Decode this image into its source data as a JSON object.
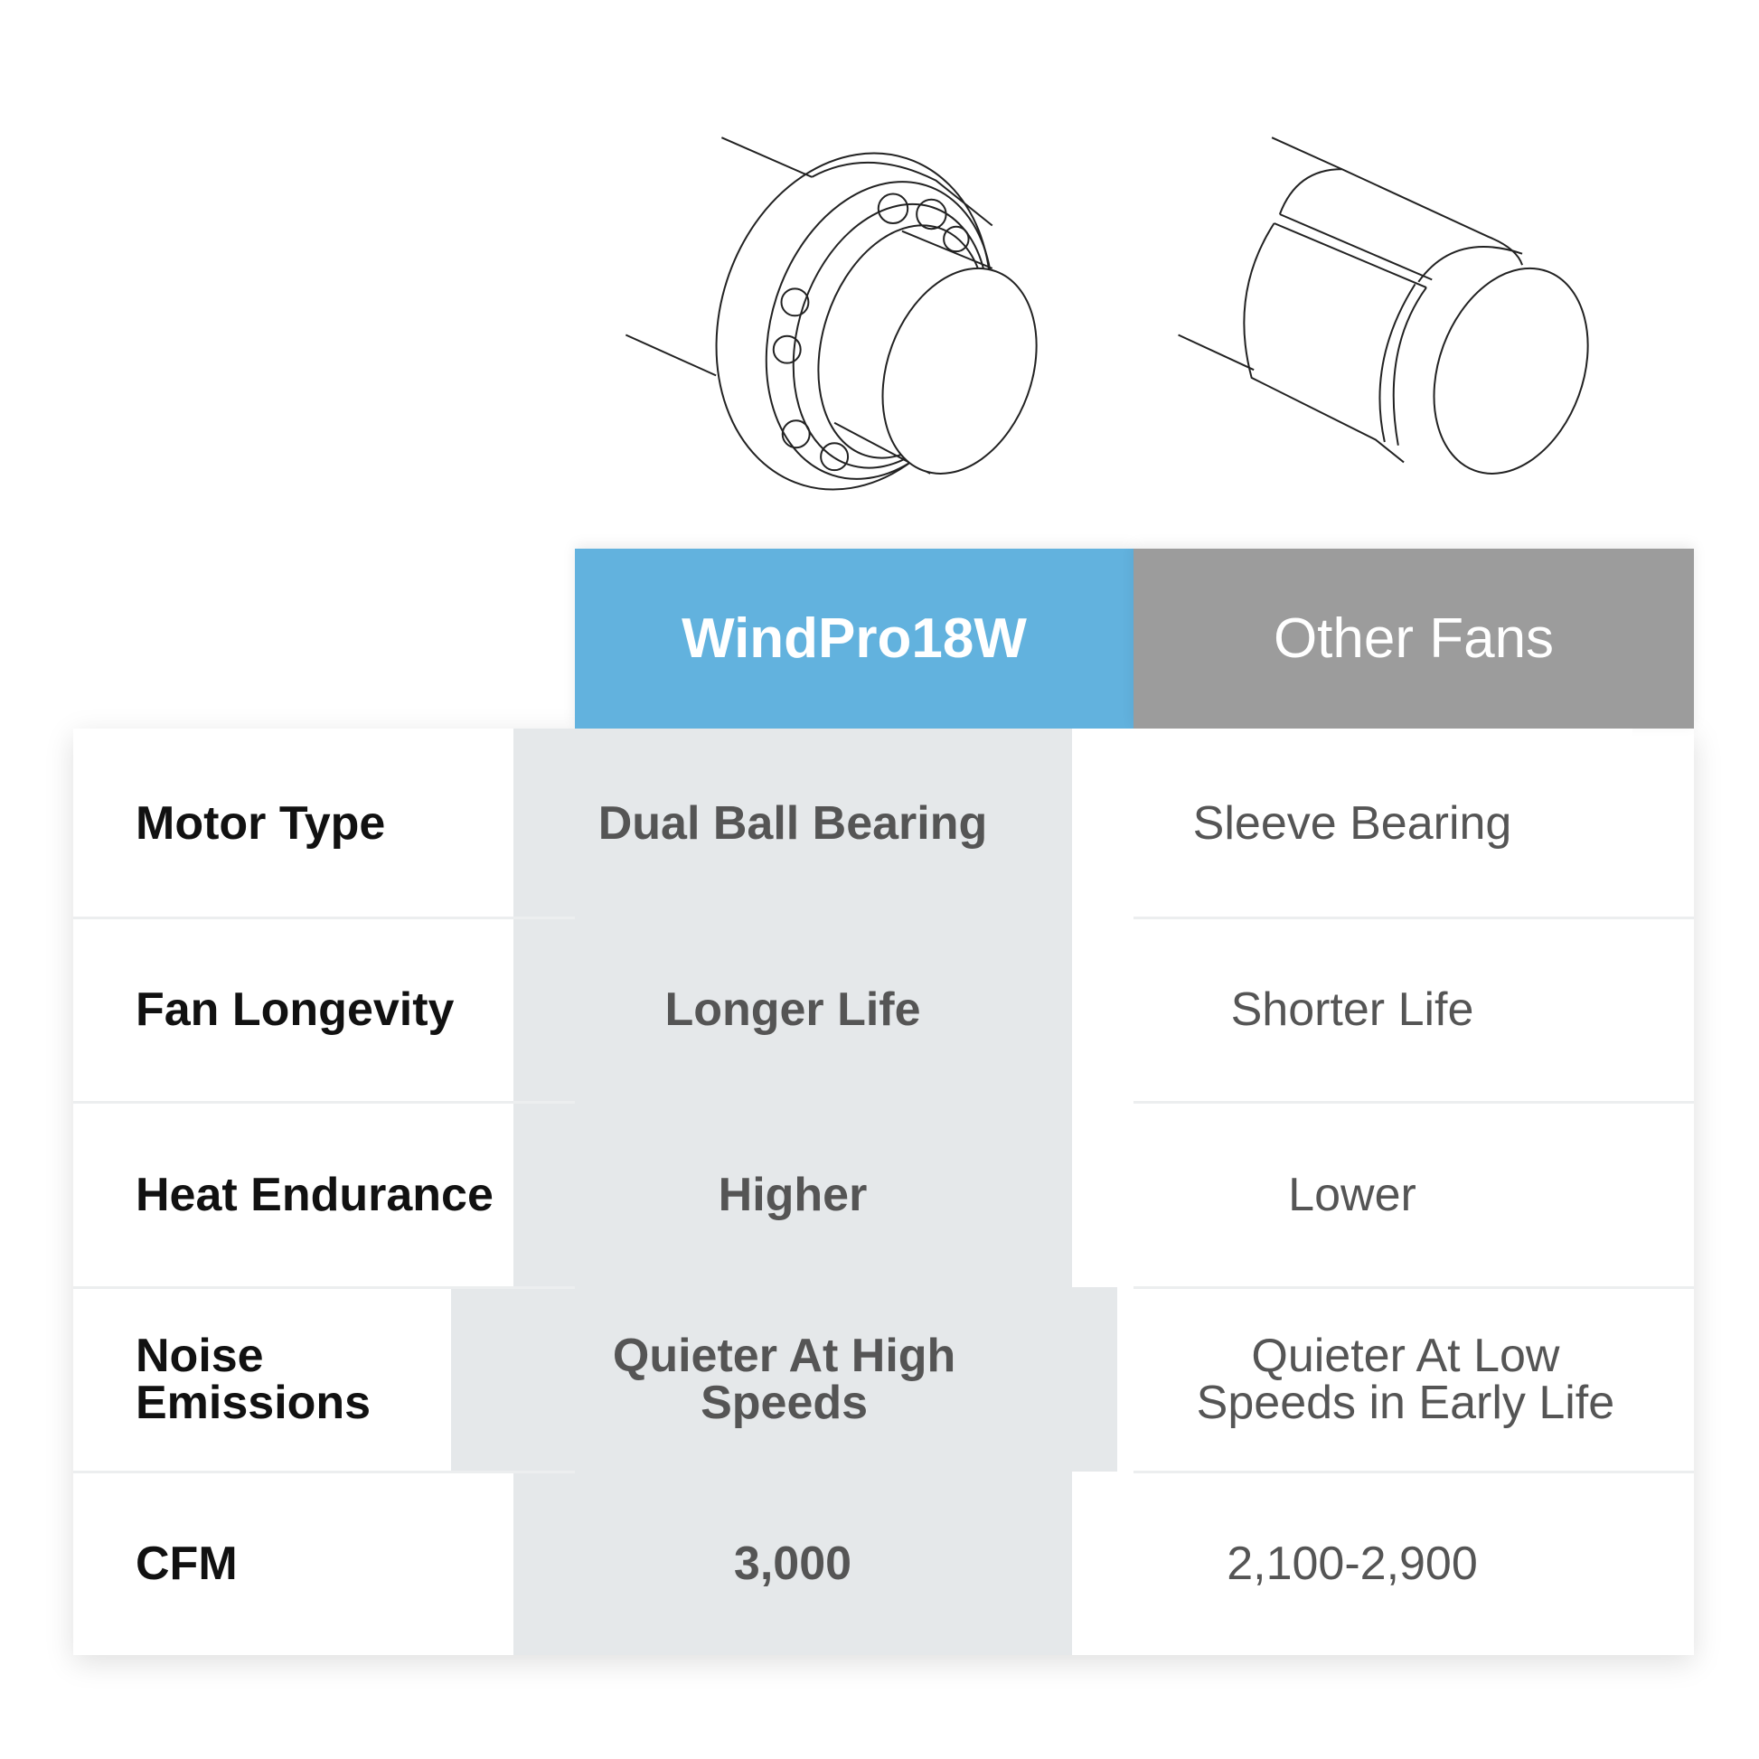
{
  "illustrations": [
    {
      "icon": "ball-bearing-drawing"
    },
    {
      "icon": "sleeve-bearing-drawing"
    }
  ],
  "header": {
    "col1": "WindPro18W",
    "col2": "Other Fans",
    "col1_color": "#62b2de",
    "col2_color": "#9c9c9c"
  },
  "rows": [
    {
      "label": "Motor Type",
      "windpro": "Dual Ball Bearing",
      "other": "Sleeve Bearing"
    },
    {
      "label": "Fan Longevity",
      "windpro": "Longer Life",
      "other": "Shorter Life"
    },
    {
      "label": "Heat Endurance",
      "windpro": "Higher",
      "other": "Lower"
    },
    {
      "label": "Noise Emissions",
      "windpro": "Quieter At High Speeds",
      "other": "Quieter At Low Speeds in Early Life"
    },
    {
      "label": "CFM",
      "windpro": "3,000",
      "other": "2,100-2,900"
    }
  ]
}
